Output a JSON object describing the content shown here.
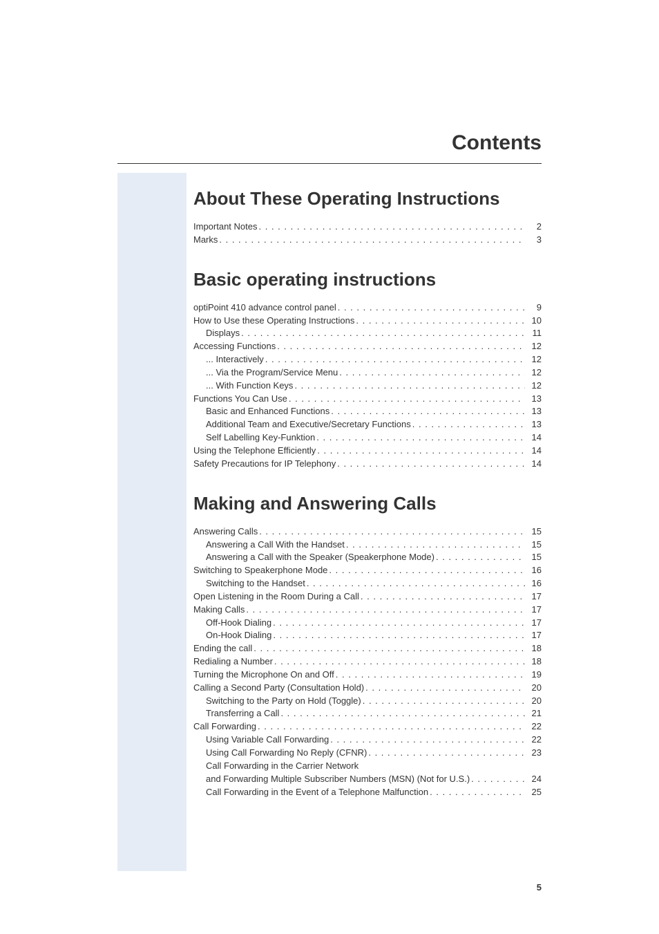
{
  "colors": {
    "background": "#ffffff",
    "text": "#333333",
    "sidebar": "#e5ecf5",
    "rule": "#333333"
  },
  "typography": {
    "body_family": "Arial, Helvetica, sans-serif",
    "body_size_pt": 10,
    "heading_size_pt": 20,
    "page_title_size_pt": 22
  },
  "header": {
    "title": "Contents"
  },
  "page_number": "5",
  "sections": [
    {
      "title": "About These Operating Instructions",
      "entries": [
        {
          "label": "Important Notes",
          "page": "2",
          "indent": 0
        },
        {
          "label": "Marks",
          "page": "3",
          "indent": 0
        }
      ]
    },
    {
      "title": "Basic operating instructions",
      "entries": [
        {
          "label": "optiPoint 410 advance control panel",
          "page": "9",
          "indent": 0
        },
        {
          "label": "How to Use these Operating Instructions",
          "page": "10",
          "indent": 0
        },
        {
          "label": "Displays",
          "page": "11",
          "indent": 1
        },
        {
          "label": "Accessing Functions",
          "page": "12",
          "indent": 0
        },
        {
          "label": "... Interactively",
          "page": "12",
          "indent": 1
        },
        {
          "label": "... Via the Program/Service Menu",
          "page": "12",
          "indent": 1
        },
        {
          "label": "... With Function Keys",
          "page": "12",
          "indent": 1
        },
        {
          "label": "Functions You Can Use",
          "page": "13",
          "indent": 0
        },
        {
          "label": "Basic and Enhanced Functions",
          "page": "13",
          "indent": 1
        },
        {
          "label": "Additional Team and Executive/Secretary Functions",
          "page": "13",
          "indent": 1
        },
        {
          "label": "Self Labelling Key-Funktion",
          "page": "14",
          "indent": 1
        },
        {
          "label": "Using the Telephone Efficiently",
          "page": "14",
          "indent": 0
        },
        {
          "label": "Safety Precautions for IP Telephony",
          "page": "14",
          "indent": 0
        }
      ]
    },
    {
      "title": "Making and Answering Calls",
      "entries": [
        {
          "label": "Answering Calls",
          "page": "15",
          "indent": 0
        },
        {
          "label": "Answering a Call With the Handset",
          "page": "15",
          "indent": 1
        },
        {
          "label": "Answering a Call with the Speaker (Speakerphone Mode)",
          "page": "15",
          "indent": 1
        },
        {
          "label": "Switching to Speakerphone Mode",
          "page": "16",
          "indent": 0
        },
        {
          "label": "Switching to the Handset",
          "page": "16",
          "indent": 1
        },
        {
          "label": "Open Listening in the Room During a Call",
          "page": "17",
          "indent": 0
        },
        {
          "label": "Making Calls",
          "page": "17",
          "indent": 0
        },
        {
          "label": "Off-Hook Dialing",
          "page": "17",
          "indent": 1
        },
        {
          "label": "On-Hook Dialing",
          "page": "17",
          "indent": 1
        },
        {
          "label": "Ending the call",
          "page": "18",
          "indent": 0
        },
        {
          "label": "Redialing a Number",
          "page": "18",
          "indent": 0
        },
        {
          "label": "Turning the Microphone On and Off",
          "page": "19",
          "indent": 0
        },
        {
          "label": "Calling a Second Party (Consultation Hold)",
          "page": "20",
          "indent": 0
        },
        {
          "label": "Switching to the Party on Hold (Toggle)",
          "page": "20",
          "indent": 1
        },
        {
          "label": "Transferring a Call",
          "page": "21",
          "indent": 1
        },
        {
          "label": "Call Forwarding",
          "page": "22",
          "indent": 0
        },
        {
          "label": "Using Variable Call Forwarding",
          "page": "22",
          "indent": 1
        },
        {
          "label": "Using Call Forwarding No Reply (CFNR)",
          "page": "23",
          "indent": 1
        },
        {
          "label": "Call Forwarding in the Carrier Network",
          "page": "",
          "indent": 1,
          "no_page": true
        },
        {
          "label": "and Forwarding Multiple Subscriber Numbers (MSN) (Not for U.S.)",
          "page": "24",
          "indent": 1
        },
        {
          "label": "Call Forwarding in the Event of a Telephone Malfunction",
          "page": "25",
          "indent": 1
        }
      ]
    }
  ]
}
